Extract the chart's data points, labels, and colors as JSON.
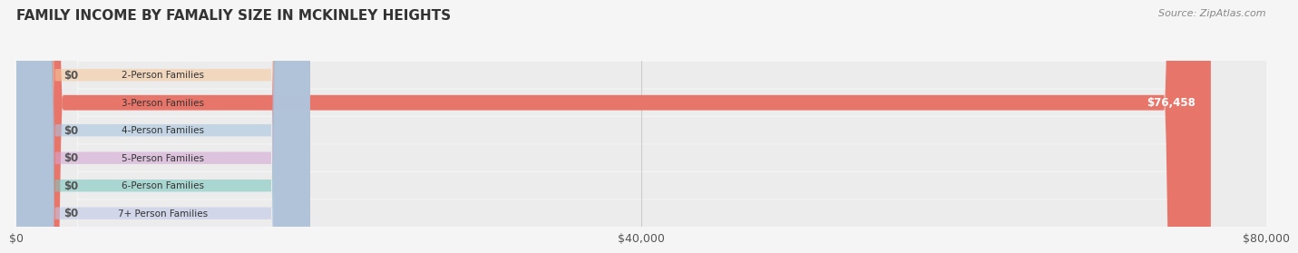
{
  "title": "FAMILY INCOME BY FAMALIY SIZE IN MCKINLEY HEIGHTS",
  "source": "Source: ZipAtlas.com",
  "categories": [
    "2-Person Families",
    "3-Person Families",
    "4-Person Families",
    "5-Person Families",
    "6-Person Families",
    "7+ Person Families"
  ],
  "values": [
    0,
    76458,
    0,
    0,
    0,
    0
  ],
  "bar_colors": [
    "#f5c9a0",
    "#e8756a",
    "#a8c4e0",
    "#d4a8d4",
    "#7ec8c0",
    "#c0c8e8"
  ],
  "xlim": [
    0,
    80000
  ],
  "xticks": [
    0,
    40000,
    80000
  ],
  "xtick_labels": [
    "$0",
    "$40,000",
    "$80,000"
  ],
  "background_color": "#f5f5f5",
  "title_fontsize": 11,
  "source_fontsize": 8,
  "bar_height": 0.55,
  "value_label_color_nonzero": "#ffffff",
  "value_label_color_zero": "#555555"
}
